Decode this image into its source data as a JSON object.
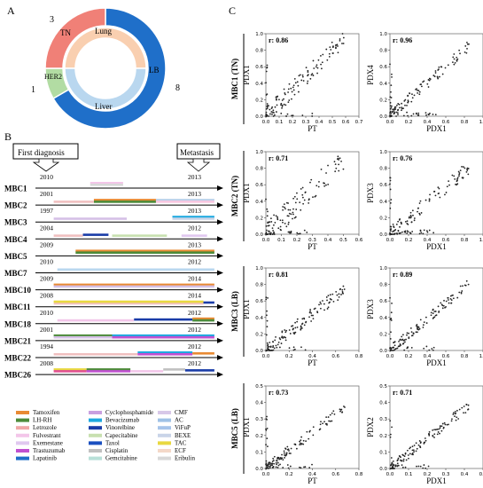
{
  "panel_labels": {
    "a": "A",
    "b": "B",
    "c": "C"
  },
  "panel_a": {
    "outer": [
      {
        "label": "LB",
        "count": "8",
        "value": 8,
        "color": "#1f6fc9"
      },
      {
        "label": "HER2",
        "count": "1",
        "value": 1,
        "color": "#b2dca3"
      },
      {
        "label": "TN",
        "count": "3",
        "value": 3,
        "color": "#f08077"
      }
    ],
    "inner": [
      {
        "label": "Lung",
        "value": 1,
        "color": "#f9cfb0"
      },
      {
        "label": "Liver",
        "value": 1,
        "color": "#b9d7ef"
      }
    ],
    "colors": {
      "outer_ring": "#1f6fc9"
    }
  },
  "panel_b": {
    "first_diagnosis": "First diagnosis",
    "metastasis": "Metastasis",
    "patients": [
      {
        "name": "MBC1",
        "start": "2010",
        "end": "2013",
        "segments": [
          [
            0.3,
            0.48,
            "#f3c6e9",
            -7
          ],
          [
            0.3,
            0.48,
            "#d8d8d8",
            -5
          ]
        ]
      },
      {
        "name": "MBC2",
        "start": "2001",
        "end": "2013",
        "segments": [
          [
            0.32,
            0.66,
            "#e88a33",
            -7
          ],
          [
            0.32,
            0.66,
            "#4d8b3a",
            -5
          ],
          [
            0.66,
            0.98,
            "#bcd1ea",
            -7
          ],
          [
            0.1,
            0.32,
            "#f0c0c0",
            -5
          ],
          [
            0.66,
            0.98,
            "#f8c7e0",
            -5
          ]
        ]
      },
      {
        "name": "MBC3",
        "start": "1997",
        "end": "2013",
        "segments": [
          [
            0.1,
            0.5,
            "#d5c0e6",
            -5
          ],
          [
            0.75,
            0.98,
            "#1ea9e0",
            -7
          ],
          [
            0.75,
            0.98,
            "#c9d4e8",
            -5
          ]
        ]
      },
      {
        "name": "MBC4",
        "start": "2004",
        "end": "2012",
        "segments": [
          [
            0.1,
            0.26,
            "#f0c0c0",
            -5
          ],
          [
            0.26,
            0.4,
            "#1a3ca8",
            -6
          ],
          [
            0.42,
            0.72,
            "#c8e0b0",
            -5
          ],
          [
            0.8,
            0.94,
            "#e0c8f0",
            -5
          ]
        ]
      },
      {
        "name": "MBC5",
        "start": "2009",
        "end": "2013",
        "segments": [
          [
            0.22,
            0.98,
            "#e88a33",
            -7
          ],
          [
            0.22,
            0.98,
            "#4d8b3a",
            -5
          ]
        ]
      },
      {
        "name": "MBC7",
        "start": "2010",
        "end": "2012",
        "segments": [
          [
            0.12,
            0.98,
            "#b9d7ef",
            -5
          ]
        ]
      },
      {
        "name": "MBC10",
        "start": "2009",
        "end": "2014",
        "segments": [
          [
            0.1,
            0.98,
            "#e88a33",
            -7
          ],
          [
            0.1,
            0.98,
            "#d5c0e6",
            -5
          ]
        ]
      },
      {
        "name": "MBC11",
        "start": "2008",
        "end": "2014",
        "segments": [
          [
            0.1,
            0.92,
            "#f0c0c0",
            -5
          ],
          [
            0.1,
            0.92,
            "#e8d840",
            -7
          ],
          [
            0.92,
            0.98,
            "#1a3ca8",
            -6
          ]
        ]
      },
      {
        "name": "MBC18",
        "start": "2010",
        "end": "2012",
        "segments": [
          [
            0.12,
            0.54,
            "#f3c6e9",
            -5
          ],
          [
            0.54,
            0.86,
            "#1a3ca8",
            -6
          ],
          [
            0.86,
            0.98,
            "#e88a33",
            -7
          ],
          [
            0.86,
            0.98,
            "#4d8b3a",
            -5
          ]
        ]
      },
      {
        "name": "MBC21",
        "start": "2001",
        "end": "2012",
        "segments": [
          [
            0.1,
            0.42,
            "#4d8b3a",
            -7
          ],
          [
            0.1,
            0.42,
            "#d5c0e6",
            -5
          ],
          [
            0.42,
            0.98,
            "#1ea9e0",
            -7
          ],
          [
            0.42,
            0.98,
            "#c050d0",
            -5
          ]
        ]
      },
      {
        "name": "MBC22",
        "start": "1994",
        "end": "2012",
        "segments": [
          [
            0.1,
            0.56,
            "#f0c0c0",
            -5
          ],
          [
            0.56,
            0.86,
            "#1ea9e0",
            -7
          ],
          [
            0.56,
            0.86,
            "#c050d0",
            -5
          ],
          [
            0.86,
            0.98,
            "#e88a33",
            -6
          ]
        ]
      },
      {
        "name": "MBC26",
        "start": "2008",
        "end": "2012",
        "segments": [
          [
            0.1,
            0.28,
            "#e8d840",
            -7
          ],
          [
            0.1,
            0.28,
            "#e05090",
            -5
          ],
          [
            0.28,
            0.52,
            "#4d8b3a",
            -7
          ],
          [
            0.28,
            0.52,
            "#c050d0",
            -5
          ],
          [
            0.52,
            0.7,
            "#f3c6e9",
            -5
          ],
          [
            0.7,
            0.82,
            "#c0c0c0",
            -7
          ],
          [
            0.82,
            0.98,
            "#1a3ca8",
            -6
          ]
        ]
      }
    ],
    "legend": [
      {
        "label": "Tamoxifen",
        "color": "#e88a33"
      },
      {
        "label": "Cyclophosphamide",
        "color": "#c9a0e0"
      },
      {
        "label": "CMF",
        "color": "#d8c8e8"
      },
      {
        "label": "LH-RH",
        "color": "#4d8b3a"
      },
      {
        "label": "Bevacizumab",
        "color": "#1ea9e0"
      },
      {
        "label": "AC",
        "color": "#9fc2e6"
      },
      {
        "label": "Letrozole",
        "color": "#f0a8a8"
      },
      {
        "label": "Vinorelbine",
        "color": "#1a3ca8"
      },
      {
        "label": "ViFuP",
        "color": "#a7c4ea"
      },
      {
        "label": "Fulvestrant",
        "color": "#f3c6e9"
      },
      {
        "label": "Capecitabine",
        "color": "#c8e0b0"
      },
      {
        "label": "BEXE",
        "color": "#c9d4e8"
      },
      {
        "label": "Exemestane",
        "color": "#e0c8f0"
      },
      {
        "label": "Taxol",
        "color": "#1a4fc0"
      },
      {
        "label": "TAC",
        "color": "#e8d840"
      },
      {
        "label": "Trastuzumab",
        "color": "#c050d0"
      },
      {
        "label": "Cisplatin",
        "color": "#c0c0c0"
      },
      {
        "label": "ECF",
        "color": "#f4d8c8"
      },
      {
        "label": "Lapatinib",
        "color": "#1f6fc9"
      },
      {
        "label": "Gemcitabine",
        "color": "#b8e0d8"
      },
      {
        "label": "Eribulin",
        "color": "#d8d8d8"
      }
    ]
  },
  "chart_data": [
    {
      "type": "scatter",
      "row_label": "MBC1 (TN)",
      "xlabel": "PT",
      "ylabel": "PDX1",
      "r": "r: 0.86",
      "xlim": [
        0,
        0.7
      ],
      "ylim": [
        0,
        1.0
      ],
      "xticks": [
        "0.0",
        "0.1",
        "0.2",
        "0.3",
        "0.4",
        "0.5",
        "0.6",
        "0.7"
      ],
      "yticks": [
        "0.0",
        "0.2",
        "0.4",
        "0.6",
        "0.8",
        "1.0"
      ],
      "slope": 1.6,
      "noise": 0.11,
      "seed": 11
    },
    {
      "type": "scatter",
      "xlabel": "PDX1",
      "ylabel": "PDX4",
      "r": "r: 0.96",
      "xlim": [
        0,
        1.0
      ],
      "ylim": [
        0,
        1.0
      ],
      "xticks": [
        "0.0",
        "0.2",
        "0.4",
        "0.6",
        "0.8",
        "1.0"
      ],
      "yticks": [
        "0.0",
        "0.2",
        "0.4",
        "0.6",
        "0.8",
        "1.0"
      ],
      "slope": 1.0,
      "noise": 0.07,
      "seed": 12
    },
    {
      "type": "scatter",
      "row_label": "MBC2 (TN)",
      "xlabel": "PT",
      "ylabel": "PDX1",
      "r": "r: 0.71",
      "xlim": [
        0,
        0.6
      ],
      "ylim": [
        0,
        1.0
      ],
      "xticks": [
        "0.0",
        "0.1",
        "0.2",
        "0.3",
        "0.4",
        "0.5",
        "0.6"
      ],
      "yticks": [
        "0.0",
        "0.2",
        "0.4",
        "0.6",
        "0.8",
        "1.0"
      ],
      "slope": 1.8,
      "noise": 0.15,
      "seed": 21
    },
    {
      "type": "scatter",
      "xlabel": "PDX1",
      "ylabel": "PDX3",
      "r": "r: 0.76",
      "xlim": [
        0,
        1.0
      ],
      "ylim": [
        0,
        1.0
      ],
      "xticks": [
        "0.0",
        "0.2",
        "0.4",
        "0.6",
        "0.8",
        "1.0"
      ],
      "yticks": [
        "0.0",
        "0.2",
        "0.4",
        "0.6",
        "0.8",
        "1.0"
      ],
      "slope": 0.95,
      "noise": 0.09,
      "seed": 22
    },
    {
      "type": "scatter",
      "row_label": "MBC3 (LB)",
      "xlabel": "PT",
      "ylabel": "PDX1",
      "r": "r: 0.81",
      "xlim": [
        0,
        0.8
      ],
      "ylim": [
        0,
        1.0
      ],
      "xticks": [
        "0.0",
        "0.2",
        "0.4",
        "0.6",
        "0.8"
      ],
      "yticks": [
        "0.0",
        "0.2",
        "0.4",
        "0.6",
        "0.8",
        "1.0"
      ],
      "slope": 1.1,
      "noise": 0.08,
      "seed": 31
    },
    {
      "type": "scatter",
      "xlabel": "PDX1",
      "ylabel": "PDX3",
      "r": "r: 0.89",
      "xlim": [
        0,
        1.0
      ],
      "ylim": [
        0,
        1.0
      ],
      "xticks": [
        "0.0",
        "0.2",
        "0.4",
        "0.6",
        "0.8",
        "1.0"
      ],
      "yticks": [
        "0.0",
        "0.2",
        "0.4",
        "0.6",
        "0.8",
        "1.0"
      ],
      "slope": 0.95,
      "noise": 0.06,
      "seed": 32
    },
    {
      "type": "scatter",
      "row_label": "MBC5 (LB)",
      "xlabel": "PT",
      "ylabel": "PDX1",
      "r": "r: 0.73",
      "xlim": [
        0,
        0.8
      ],
      "ylim": [
        0,
        0.5
      ],
      "xticks": [
        "0.0",
        "0.2",
        "0.4",
        "0.6",
        "0.8"
      ],
      "yticks": [
        "0.0",
        "0.1",
        "0.2",
        "0.3",
        "0.4",
        "0.5"
      ],
      "slope": 0.55,
      "noise": 0.06,
      "seed": 41
    },
    {
      "type": "scatter",
      "xlabel": "PDX1",
      "ylabel": "PDX2",
      "r": "r: 0.71",
      "xlim": [
        0,
        0.5
      ],
      "ylim": [
        0,
        0.5
      ],
      "xticks": [
        "0.0",
        "0.1",
        "0.2",
        "0.3",
        "0.4",
        "0.5"
      ],
      "yticks": [
        "0.0",
        "0.1",
        "0.2",
        "0.3",
        "0.4",
        "0.5"
      ],
      "slope": 0.9,
      "noise": 0.06,
      "seed": 42
    }
  ]
}
